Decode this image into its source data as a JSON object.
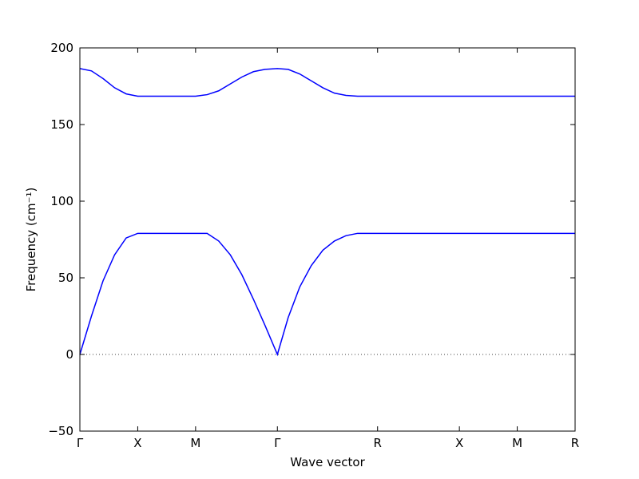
{
  "chart_data": {
    "type": "line",
    "xlabel": "Wave vector",
    "ylabel": "Frequency (cm⁻¹)",
    "x": [
      0,
      0.1,
      0.2,
      0.3,
      0.4,
      0.5,
      0.75,
      1.0,
      1.1,
      1.2,
      1.3,
      1.4,
      1.5,
      1.6,
      1.707,
      1.8,
      1.9,
      2.0,
      2.1,
      2.2,
      2.3,
      2.4,
      2.573,
      3.28,
      3.78,
      4.28
    ],
    "series": [
      {
        "color": "#0000ff",
        "values": [
          0,
          25,
          48,
          65,
          76,
          79,
          79,
          79,
          79,
          74,
          65,
          52,
          36,
          19,
          0,
          24,
          44,
          58,
          68,
          74,
          77.5,
          79,
          79,
          79,
          79,
          79
        ]
      },
      {
        "color": "#0000ff",
        "values": [
          186.5,
          185,
          180,
          174,
          170,
          168.5,
          168.5,
          168.5,
          169.5,
          172,
          176.5,
          181,
          184.5,
          186,
          186.5,
          186,
          183,
          178.5,
          174,
          170.5,
          169,
          168.5,
          168.5,
          168.5,
          168.5,
          168.5
        ]
      }
    ],
    "xlim": [
      0,
      4.28
    ],
    "xticks": [
      {
        "value": 0,
        "label": "Γ"
      },
      {
        "value": 0.5,
        "label": "X"
      },
      {
        "value": 1.0,
        "label": "M"
      },
      {
        "value": 1.707,
        "label": "Γ"
      },
      {
        "value": 2.573,
        "label": "R"
      },
      {
        "value": 3.28,
        "label": "X"
      },
      {
        "value": 3.78,
        "label": "M"
      },
      {
        "value": 4.28,
        "label": "R"
      }
    ],
    "ylim": [
      -50,
      200
    ],
    "yticks": [
      {
        "value": -50,
        "label": "−50"
      },
      0,
      50,
      100,
      150,
      200
    ],
    "hline": 0,
    "grid": false
  }
}
